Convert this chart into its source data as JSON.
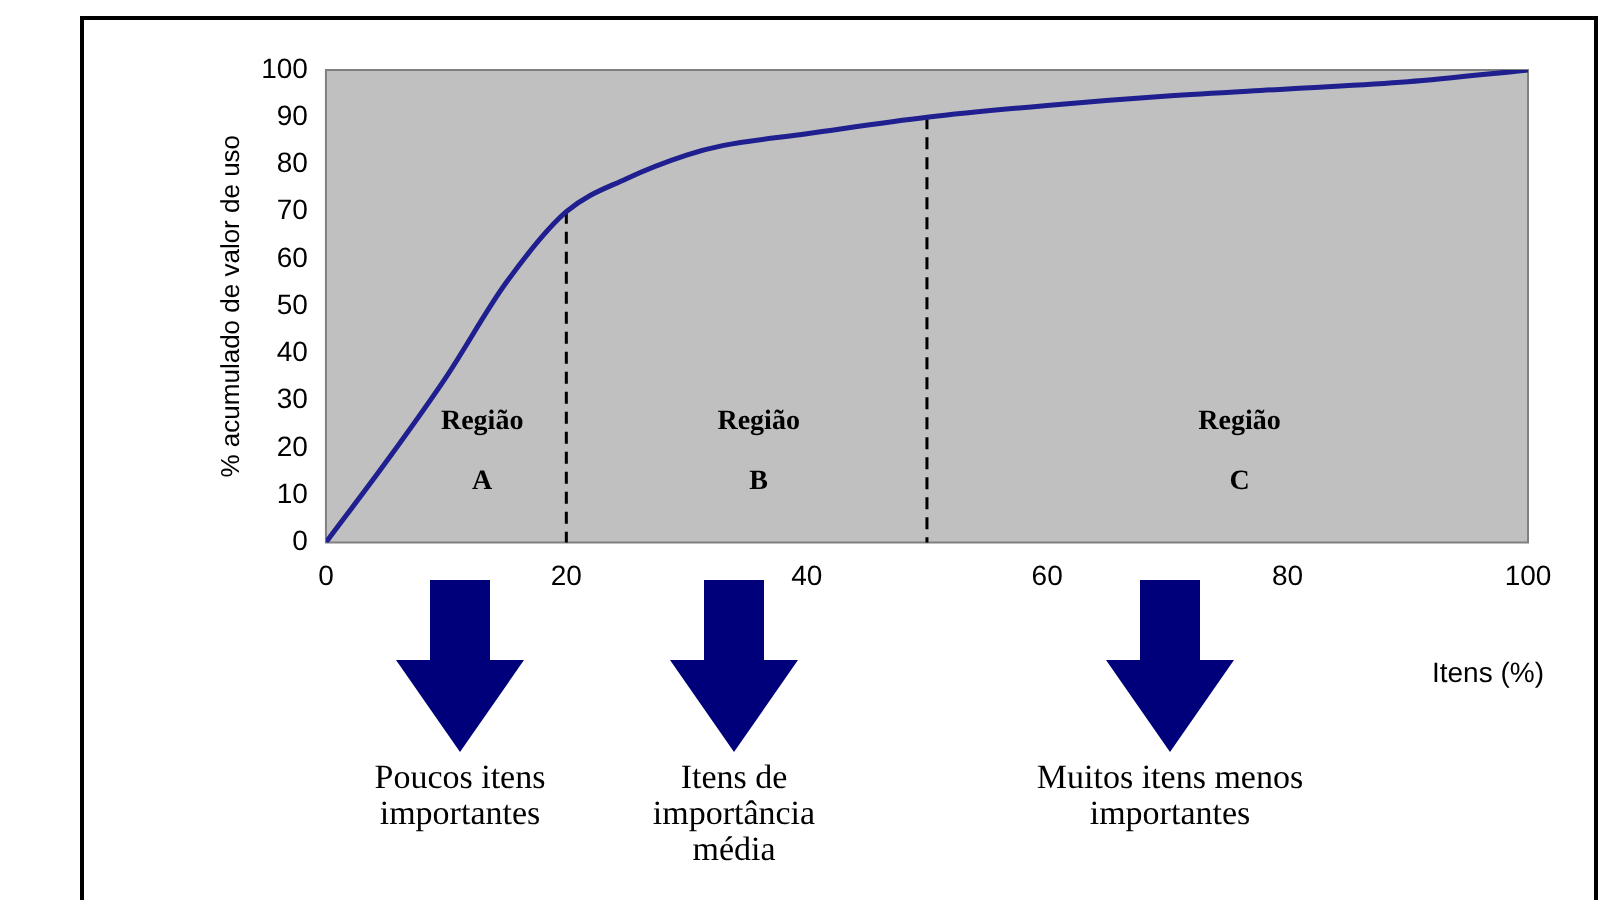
{
  "chart_data": {
    "type": "line",
    "xlabel": "Itens (%)",
    "ylabel": "% acumulado de valor de uso",
    "x": [
      0,
      5,
      10,
      15,
      20,
      25,
      30,
      33,
      40,
      50,
      60,
      70,
      80,
      90,
      100
    ],
    "series": [
      {
        "color": "#1f1f8f",
        "values": [
          0,
          17,
          35,
          55,
          70,
          77,
          82,
          84,
          86.5,
          90,
          92.5,
          94.5,
          96,
          97.5,
          100
        ]
      }
    ],
    "xlim": [
      0,
      100
    ],
    "xticks": [
      0,
      20,
      40,
      60,
      80,
      100
    ],
    "ylim": [
      0,
      100
    ],
    "yticks": [
      0,
      10,
      20,
      30,
      40,
      50,
      60,
      70,
      80,
      90,
      100
    ],
    "grid": false,
    "legend": false,
    "marker": "none",
    "line_style": "solid",
    "ref_lines": [
      {
        "axis": "x",
        "value": 20,
        "line_style": "dashed",
        "color": "#000000"
      },
      {
        "axis": "x",
        "value": 50,
        "line_style": "dashed",
        "color": "#000000"
      }
    ],
    "annotations": [
      "Região A",
      "Região B",
      "Região C",
      "Poucos itens importantes",
      "Itens de importância média",
      "Muitos itens menos importantes"
    ]
  }
}
